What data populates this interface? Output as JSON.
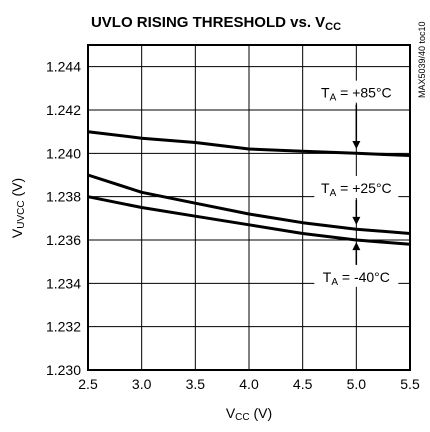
{
  "chart_data": {
    "type": "line",
    "title": {
      "main": "UVLO RISING THRESHOLD vs. V",
      "sub": "CC"
    },
    "side_label": "MAX5039/40 toc10",
    "xlabel": {
      "main": "V",
      "sub": "CC",
      "rest": " (V)"
    },
    "ylabel": {
      "main": "V",
      "sub": "UVCC",
      "rest": " (V)"
    },
    "xlim": [
      2.5,
      5.5
    ],
    "ylim": [
      1.23,
      1.245
    ],
    "xticks": [
      "2.5",
      "3.0",
      "3.5",
      "4.0",
      "4.5",
      "5.0",
      "5.5"
    ],
    "yticks": [
      "1.230",
      "1.232",
      "1.234",
      "1.236",
      "1.238",
      "1.240",
      "1.242",
      "1.244"
    ],
    "grid": true,
    "series": [
      {
        "name": "+85°C",
        "x": [
          2.5,
          3.0,
          3.5,
          4.0,
          4.5,
          5.0,
          5.5
        ],
        "y": [
          1.241,
          1.2407,
          1.2405,
          1.2402,
          1.2401,
          1.24,
          1.2399
        ]
      },
      {
        "name": "+25°C",
        "x": [
          2.5,
          3.0,
          3.5,
          4.0,
          4.5,
          5.0,
          5.5
        ],
        "y": [
          1.239,
          1.2382,
          1.2377,
          1.2372,
          1.2368,
          1.2365,
          1.2363
        ]
      },
      {
        "name": "-40°C",
        "x": [
          2.5,
          3.0,
          3.5,
          4.0,
          4.5,
          5.0,
          5.5
        ],
        "y": [
          1.238,
          1.2375,
          1.2371,
          1.2367,
          1.2363,
          1.236,
          1.2358
        ]
      }
    ],
    "annotations": [
      {
        "prefix": "T",
        "sub": "A",
        "text": " = +85°C",
        "x": 5.0,
        "y": 1.2428,
        "arrow_to": 1.2402,
        "arrow_dir": "down"
      },
      {
        "prefix": "T",
        "sub": "A",
        "text": " = +25°C",
        "x": 5.0,
        "y": 1.2384,
        "arrow_to": 1.2367,
        "arrow_dir": "down"
      },
      {
        "prefix": "T",
        "sub": "A",
        "text": " = -40°C",
        "x": 5.0,
        "y": 1.2343,
        "arrow_to": 1.2359,
        "arrow_dir": "up"
      }
    ]
  }
}
